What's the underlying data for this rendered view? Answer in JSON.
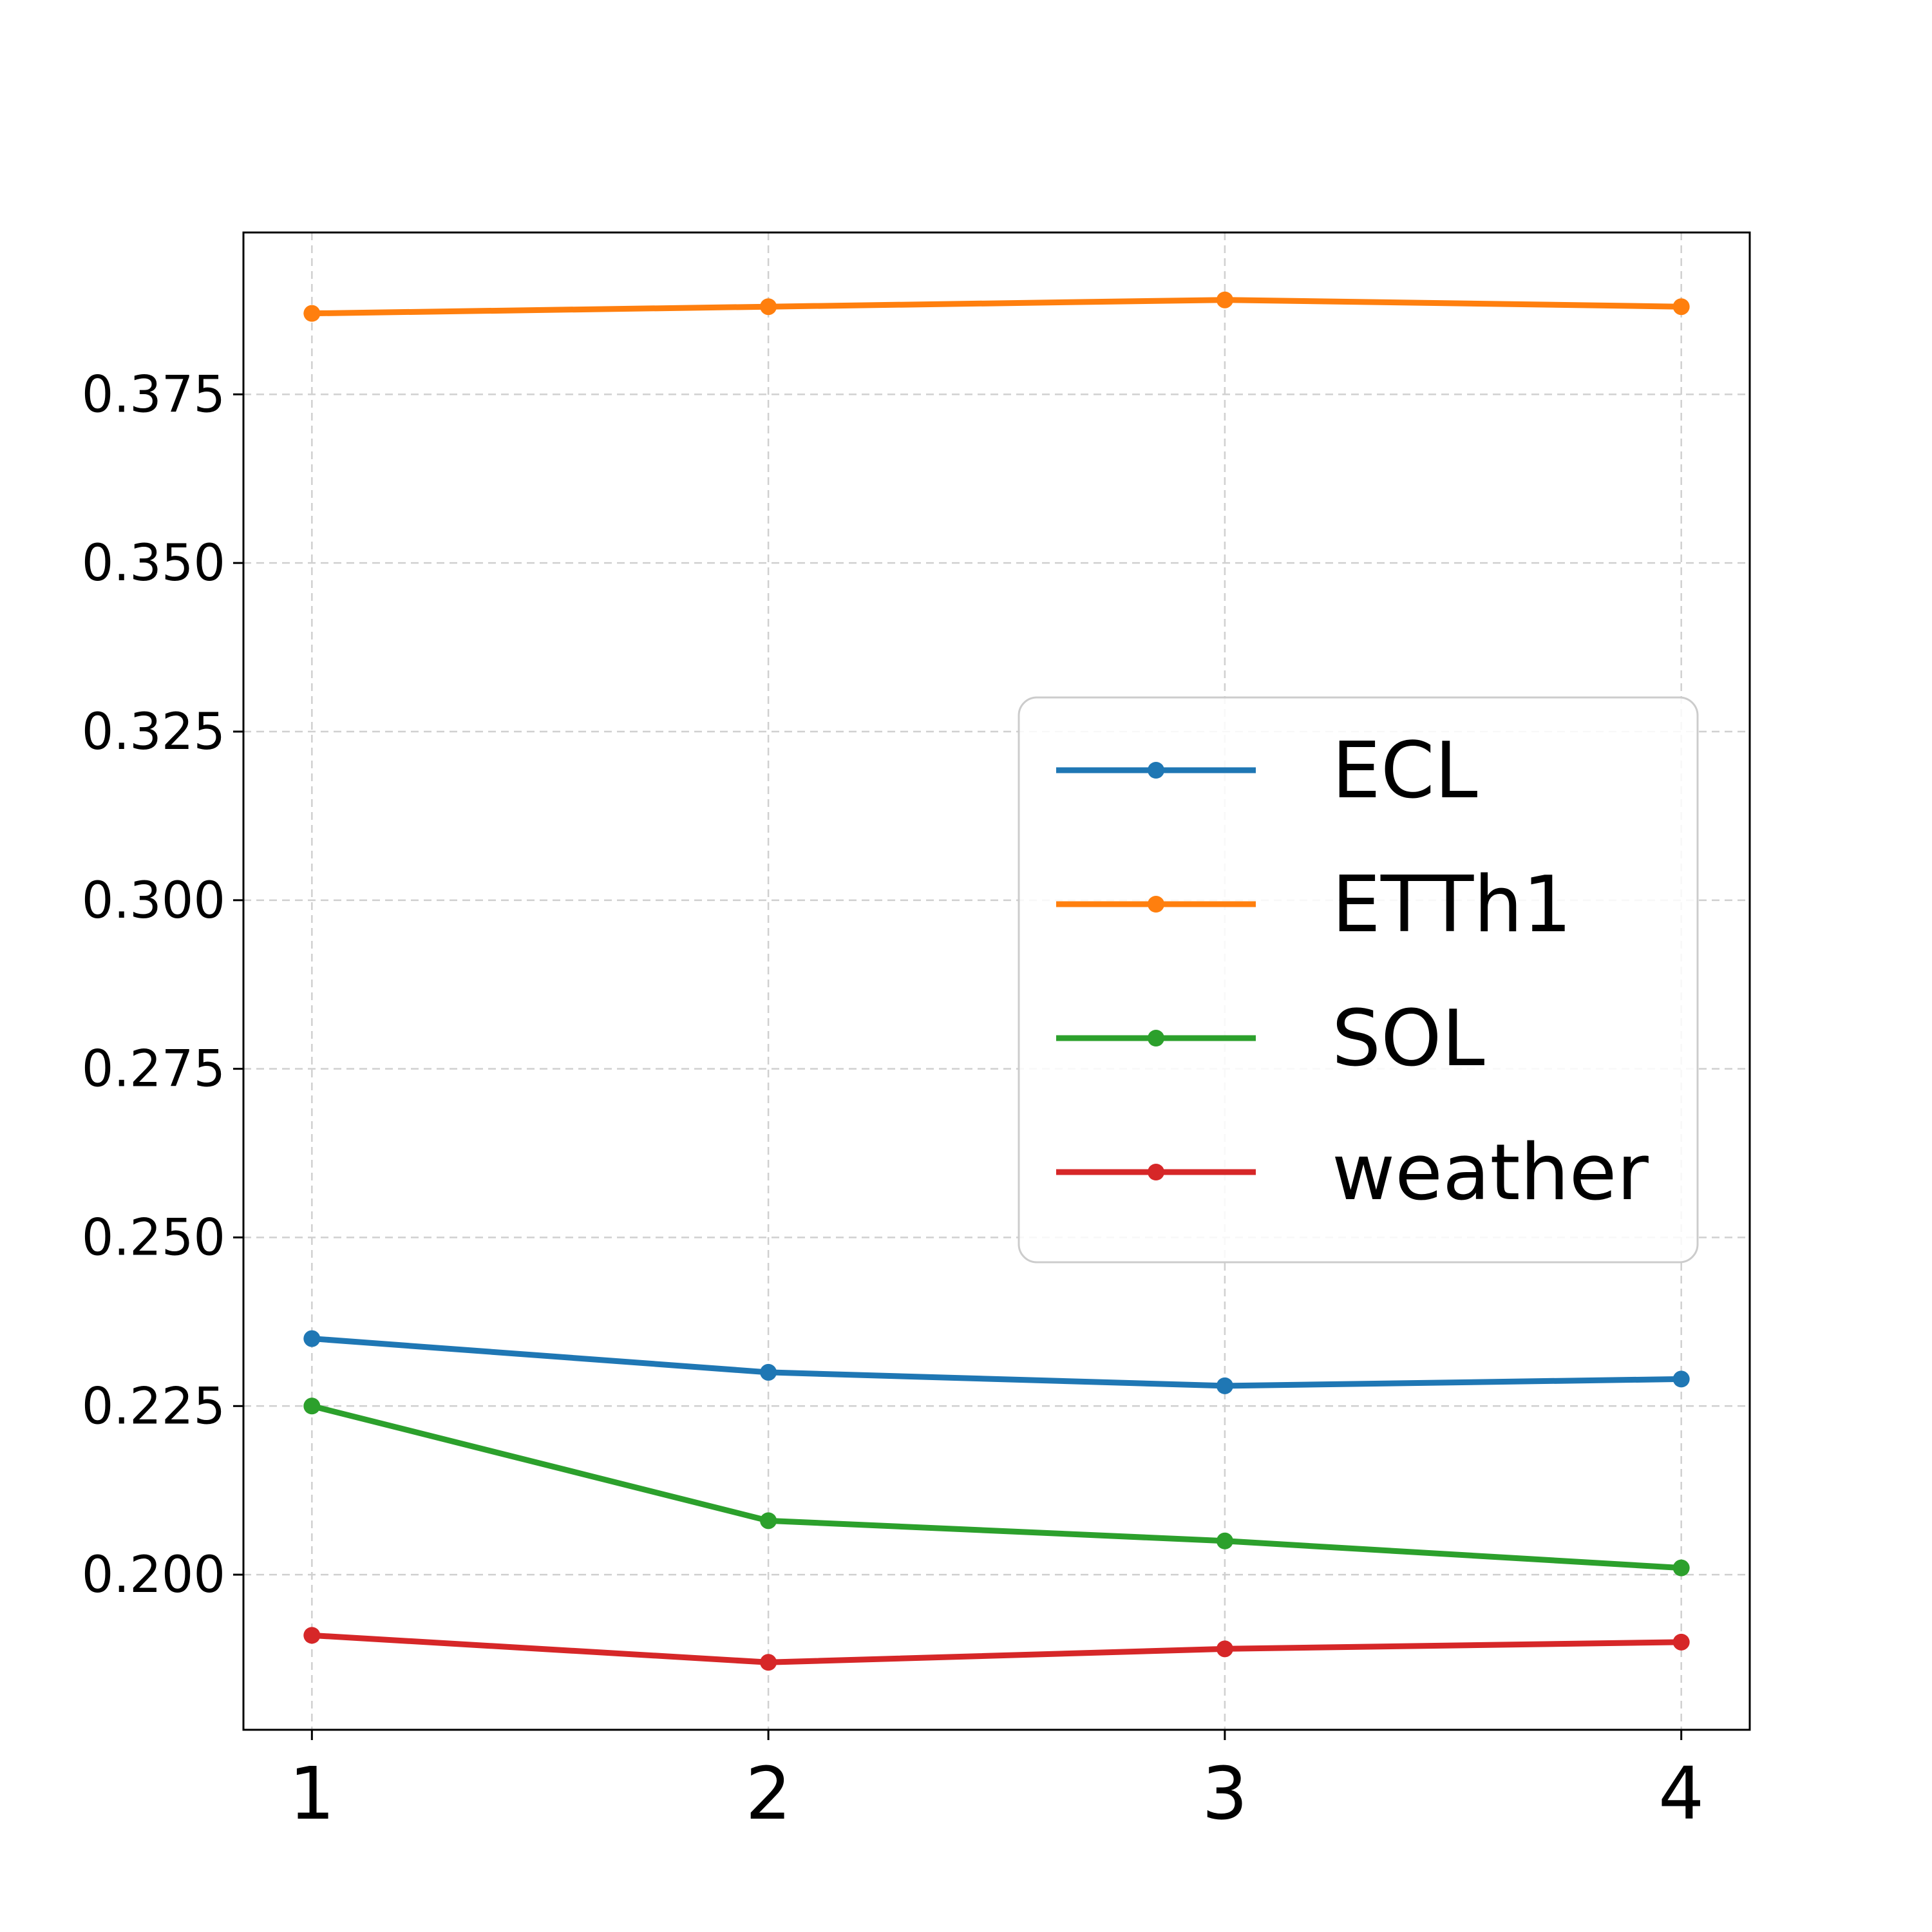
{
  "chart_data": {
    "type": "line",
    "title": "",
    "xlabel": "",
    "ylabel": "",
    "x": [
      1,
      2,
      3,
      4
    ],
    "x_tick_labels": [
      "1",
      "2",
      "3",
      "4"
    ],
    "xlim": [
      0.85,
      4.15
    ],
    "ylim": [
      0.177,
      0.399
    ],
    "y_ticks": [
      0.2,
      0.225,
      0.25,
      0.275,
      0.3,
      0.325,
      0.35,
      0.375
    ],
    "y_tick_labels": [
      "0.200",
      "0.225",
      "0.250",
      "0.275",
      "0.300",
      "0.325",
      "0.350",
      "0.375"
    ],
    "grid": true,
    "legend_position": "center-right",
    "series": [
      {
        "name": "ECL",
        "color": "#1f77b4",
        "values": [
          0.235,
          0.23,
          0.228,
          0.229
        ]
      },
      {
        "name": "ETTh1",
        "color": "#ff7f0e",
        "values": [
          0.387,
          0.388,
          0.389,
          0.388
        ]
      },
      {
        "name": "SOL",
        "color": "#2ca02c",
        "values": [
          0.225,
          0.208,
          0.205,
          0.201
        ]
      },
      {
        "name": "weather",
        "color": "#d62728",
        "values": [
          0.191,
          0.187,
          0.189,
          0.19
        ]
      }
    ]
  }
}
